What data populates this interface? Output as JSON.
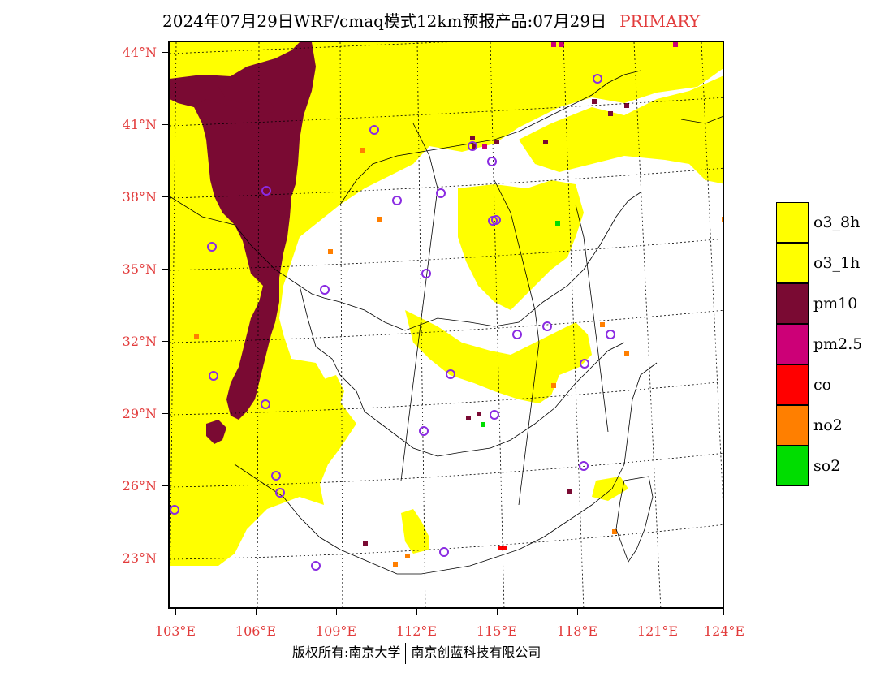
{
  "title": {
    "main": "2024年07月29日WRF/cmaq模式12km预报产品:07月29日",
    "tag": "PRIMARY"
  },
  "map": {
    "lat_labels": [
      "44°N",
      "41°N",
      "38°N",
      "35°N",
      "32°N",
      "29°N",
      "26°N",
      "23°N"
    ],
    "lon_labels": [
      "103°E",
      "106°E",
      "109°E",
      "112°E",
      "115°E",
      "118°E",
      "121°E",
      "124°E"
    ],
    "colors": {
      "o3": "#ffff00",
      "pm10": "#7a0a33",
      "pm25": "#cc0077",
      "co": "#ff0000",
      "no2": "#ff7f00",
      "so2": "#00dd00",
      "station": "#8a2be2",
      "border": "#000000",
      "grid": "#000000"
    }
  },
  "legend": [
    {
      "label": "o3_8h",
      "color": "#ffff00"
    },
    {
      "label": "o3_1h",
      "color": "#ffff00"
    },
    {
      "label": "pm10",
      "color": "#7a0a33"
    },
    {
      "label": "pm2.5",
      "color": "#cc0077"
    },
    {
      "label": "co",
      "color": "#ff0000"
    },
    {
      "label": "no2",
      "color": "#ff7f00"
    },
    {
      "label": "so2",
      "color": "#00dd00"
    }
  ],
  "footer": {
    "left": "版权所有:南京大学",
    "right": "南京创蓝科技有限公司"
  }
}
